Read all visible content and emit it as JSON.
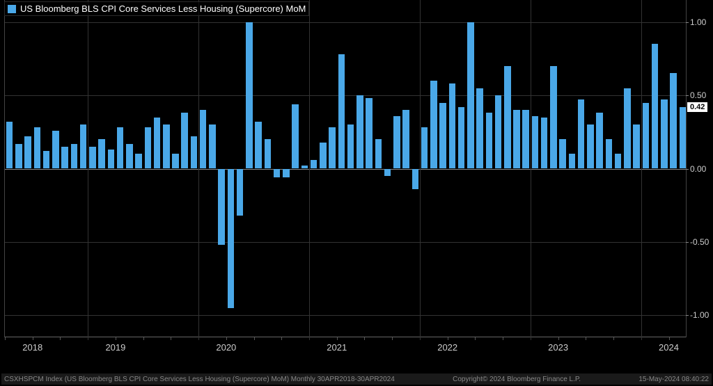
{
  "chart": {
    "type": "bar",
    "title": "US Bloomberg BLS CPI Core Services Less Housing (Supercore) MoM",
    "background_color": "#000000",
    "bar_color": "#4aa8e8",
    "grid_color": "#333333",
    "zero_line_color": "#888888",
    "text_color": "#cccccc",
    "legend_text_color": "#ffffff",
    "ylim": [
      -1.15,
      1.15
    ],
    "yticks": [
      -1.0,
      -0.5,
      0.0,
      0.5,
      1.0
    ],
    "ytick_labels": [
      "-1.00",
      "-0.50",
      "0.00",
      "0.50",
      "1.00"
    ],
    "last_value": 0.42,
    "last_value_label": "0.42",
    "last_tag_bg": "#ffffff",
    "last_tag_fg": "#000000",
    "years": [
      {
        "label": "2018",
        "start_index": 0
      },
      {
        "label": "2019",
        "start_index": 9
      },
      {
        "label": "2020",
        "start_index": 21
      },
      {
        "label": "2021",
        "start_index": 33
      },
      {
        "label": "2022",
        "start_index": 45
      },
      {
        "label": "2023",
        "start_index": 57
      },
      {
        "label": "2024",
        "start_index": 69
      }
    ],
    "values": [
      0.32,
      0.17,
      0.22,
      0.28,
      0.12,
      0.26,
      0.15,
      0.17,
      0.3,
      0.15,
      0.2,
      0.13,
      0.28,
      0.17,
      0.1,
      0.28,
      0.35,
      0.3,
      0.1,
      0.38,
      0.22,
      0.4,
      0.3,
      -0.52,
      -0.95,
      -0.32,
      1.0,
      0.32,
      0.2,
      -0.06,
      -0.06,
      0.44,
      0.02,
      0.06,
      0.18,
      0.28,
      0.78,
      0.3,
      0.5,
      0.48,
      0.2,
      -0.05,
      0.36,
      0.4,
      -0.14,
      0.28,
      0.6,
      0.45,
      0.58,
      0.42,
      1.0,
      0.55,
      0.38,
      0.5,
      0.7,
      0.4,
      0.4,
      0.36,
      0.35,
      0.7,
      0.2,
      0.1,
      0.47,
      0.3,
      0.38,
      0.2,
      0.1,
      0.55,
      0.3,
      0.45,
      0.85,
      0.47,
      0.65,
      0.42
    ]
  },
  "footer": {
    "left": "CSXHSPCM Index (US Bloomberg BLS CPI Core Services Less Housing (Supercore) MoM)  Monthly 30APR2018-30APR2024",
    "mid": "Copyright© 2024 Bloomberg Finance L.P.",
    "right": "15-May-2024 08:40:22"
  }
}
